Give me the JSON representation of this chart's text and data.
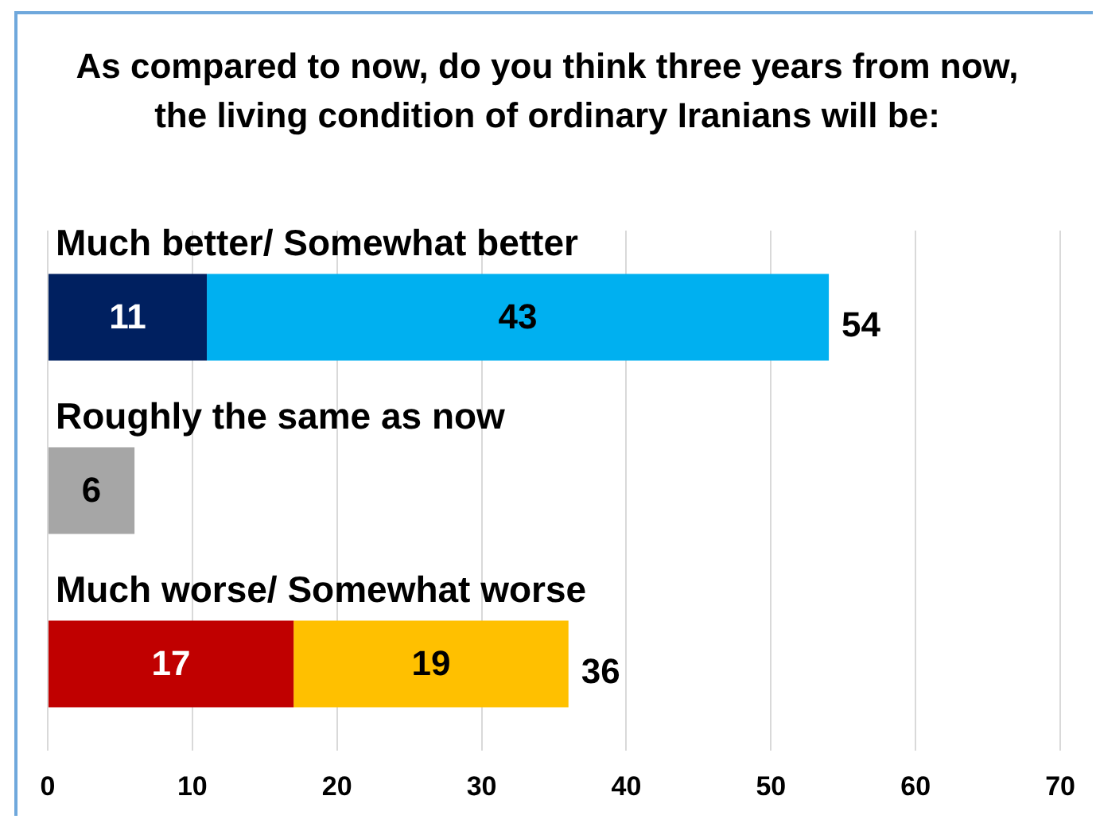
{
  "chart_data": {
    "type": "bar",
    "orientation": "horizontal",
    "stacked": true,
    "title": "As compared to now, do you think three years from now, the living condition of ordinary Iranians will be:",
    "categories": [
      "Much better/ Somewhat better",
      "Roughly the same as now",
      "Much worse/ Somewhat worse"
    ],
    "series": [
      {
        "colors": [
          "#002060",
          "#a6a6a6",
          "#c00000"
        ],
        "values": [
          11,
          6,
          17
        ]
      },
      {
        "colors": [
          "#00b0f0",
          "#00b0f0",
          "#ffc000"
        ],
        "values": [
          43,
          null,
          19
        ]
      }
    ],
    "xlim": [
      0,
      70
    ],
    "xticks": [
      0,
      10,
      20,
      30,
      40,
      50,
      60,
      70
    ],
    "grid": "x",
    "data_labels": true,
    "totals": [
      "54",
      null,
      "36"
    ]
  }
}
